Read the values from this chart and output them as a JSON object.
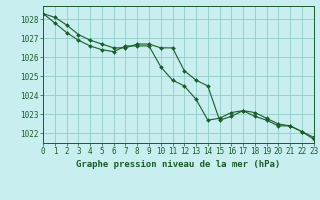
{
  "title": "Graphe pression niveau de la mer (hPa)",
  "background_color": "#c8eef0",
  "plot_bg_color": "#c8eef0",
  "grid_color": "#90ccc8",
  "line_color": "#1a5c2a",
  "marker_color": "#1a5c2a",
  "x_min": 0,
  "x_max": 23,
  "y_min": 1021.5,
  "y_max": 1028.7,
  "yticks": [
    1022,
    1023,
    1024,
    1025,
    1026,
    1027,
    1028
  ],
  "xticks": [
    0,
    1,
    2,
    3,
    4,
    5,
    6,
    7,
    8,
    9,
    10,
    11,
    12,
    13,
    14,
    15,
    16,
    17,
    18,
    19,
    20,
    21,
    22,
    23
  ],
  "series1_x": [
    0,
    1,
    2,
    3,
    4,
    5,
    6,
    7,
    8,
    9,
    10,
    11,
    12,
    13,
    14,
    15,
    16,
    17,
    18,
    19,
    20,
    21,
    22,
    23
  ],
  "series1_y": [
    1028.3,
    1028.1,
    1027.7,
    1027.2,
    1026.9,
    1026.7,
    1026.5,
    1026.5,
    1026.7,
    1026.7,
    1026.5,
    1026.5,
    1025.3,
    1024.8,
    1024.5,
    1022.7,
    1022.9,
    1023.2,
    1023.1,
    1022.8,
    1022.5,
    1022.4,
    1022.1,
    1021.8
  ],
  "series2_x": [
    0,
    1,
    2,
    3,
    4,
    5,
    6,
    7,
    8,
    9,
    10,
    11,
    12,
    13,
    14,
    15,
    16,
    17,
    18,
    19,
    20,
    21,
    22,
    23
  ],
  "series2_y": [
    1028.3,
    1027.8,
    1027.3,
    1026.9,
    1026.6,
    1026.4,
    1026.3,
    1026.6,
    1026.6,
    1026.6,
    1025.5,
    1024.8,
    1024.5,
    1023.8,
    1022.7,
    1022.8,
    1023.1,
    1023.2,
    1022.9,
    1022.7,
    1022.4,
    1022.4,
    1022.1,
    1021.7
  ],
  "tick_fontsize": 5.5,
  "label_fontsize": 6.5,
  "fig_width": 3.2,
  "fig_height": 2.0,
  "dpi": 100
}
